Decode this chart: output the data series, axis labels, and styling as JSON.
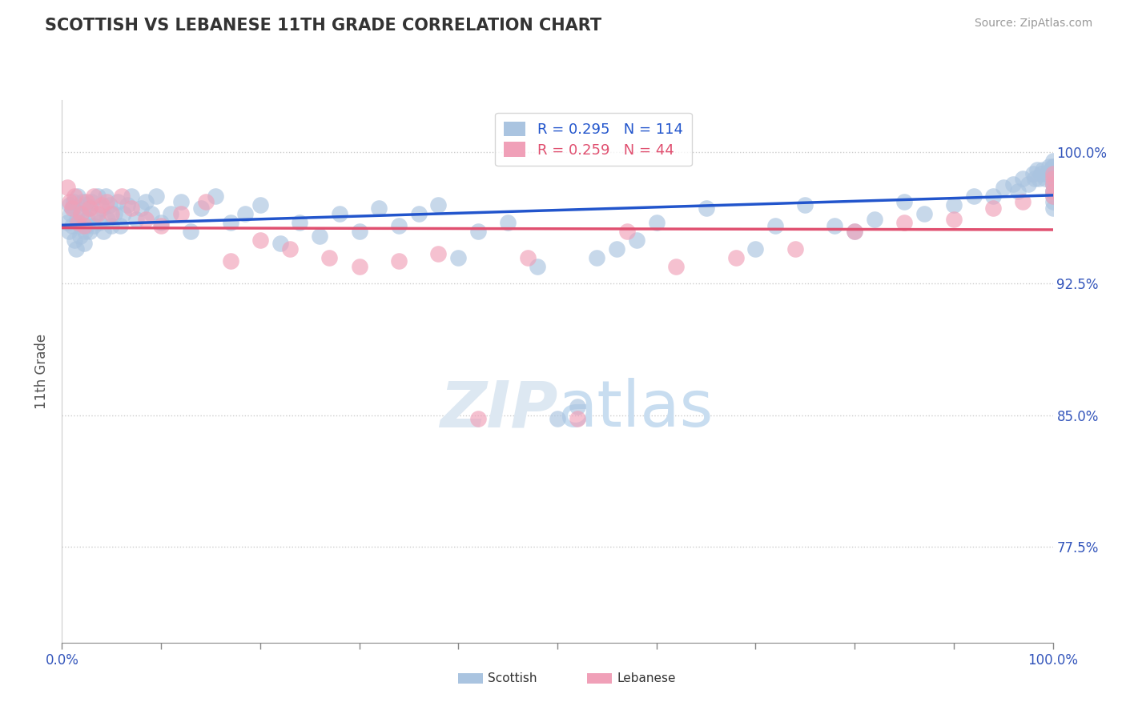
{
  "title": "SCOTTISH VS LEBANESE 11TH GRADE CORRELATION CHART",
  "source": "Source: ZipAtlas.com",
  "ylabel": "11th Grade",
  "ytick_labels": [
    "77.5%",
    "85.0%",
    "92.5%",
    "100.0%"
  ],
  "ytick_values": [
    0.775,
    0.85,
    0.925,
    1.0
  ],
  "xlim": [
    0.0,
    1.0
  ],
  "ylim": [
    0.72,
    1.03
  ],
  "scottish_color": "#aac4e0",
  "lebanese_color": "#f0a0b8",
  "scottish_line_color": "#2255cc",
  "lebanese_line_color": "#e05070",
  "scottish_R": 0.295,
  "scottish_N": 114,
  "lebanese_R": 0.259,
  "lebanese_N": 44,
  "scottish_x": [
    0.005,
    0.007,
    0.008,
    0.009,
    0.01,
    0.011,
    0.012,
    0.013,
    0.014,
    0.015,
    0.016,
    0.017,
    0.018,
    0.019,
    0.02,
    0.021,
    0.022,
    0.023,
    0.024,
    0.025,
    0.026,
    0.027,
    0.028,
    0.03,
    0.032,
    0.034,
    0.036,
    0.038,
    0.04,
    0.042,
    0.044,
    0.046,
    0.048,
    0.05,
    0.053,
    0.056,
    0.059,
    0.062,
    0.066,
    0.07,
    0.075,
    0.08,
    0.085,
    0.09,
    0.095,
    0.1,
    0.11,
    0.12,
    0.13,
    0.14,
    0.155,
    0.17,
    0.185,
    0.2,
    0.22,
    0.24,
    0.26,
    0.28,
    0.3,
    0.32,
    0.34,
    0.36,
    0.38,
    0.4,
    0.42,
    0.45,
    0.48,
    0.5,
    0.52,
    0.54,
    0.56,
    0.58,
    0.6,
    0.65,
    0.7,
    0.72,
    0.75,
    0.78,
    0.8,
    0.82,
    0.85,
    0.87,
    0.9,
    0.92,
    0.94,
    0.95,
    0.96,
    0.965,
    0.97,
    0.975,
    0.98,
    0.982,
    0.984,
    0.986,
    0.988,
    0.99,
    0.992,
    0.994,
    0.996,
    0.998,
    1.0,
    1.0,
    1.0,
    1.0,
    1.0,
    1.0,
    1.0,
    1.0,
    1.0,
    1.0,
    1.0,
    1.0,
    1.0,
    1.0
  ],
  "scottish_y": [
    0.96,
    0.955,
    0.97,
    0.965,
    0.958,
    0.968,
    0.972,
    0.95,
    0.945,
    0.962,
    0.975,
    0.96,
    0.952,
    0.958,
    0.965,
    0.972,
    0.948,
    0.955,
    0.97,
    0.958,
    0.962,
    0.968,
    0.955,
    0.972,
    0.958,
    0.965,
    0.975,
    0.96,
    0.968,
    0.955,
    0.975,
    0.962,
    0.97,
    0.958,
    0.965,
    0.972,
    0.958,
    0.965,
    0.97,
    0.975,
    0.962,
    0.968,
    0.972,
    0.965,
    0.975,
    0.96,
    0.965,
    0.972,
    0.955,
    0.968,
    0.975,
    0.96,
    0.965,
    0.97,
    0.948,
    0.96,
    0.952,
    0.965,
    0.955,
    0.968,
    0.958,
    0.965,
    0.97,
    0.94,
    0.955,
    0.96,
    0.935,
    0.848,
    0.855,
    0.94,
    0.945,
    0.95,
    0.96,
    0.968,
    0.945,
    0.958,
    0.97,
    0.958,
    0.955,
    0.962,
    0.972,
    0.965,
    0.97,
    0.975,
    0.975,
    0.98,
    0.982,
    0.978,
    0.985,
    0.982,
    0.988,
    0.985,
    0.99,
    0.985,
    0.988,
    0.99,
    0.985,
    0.988,
    0.992,
    0.99,
    0.972,
    0.978,
    0.982,
    0.985,
    0.988,
    0.992,
    0.995,
    0.988,
    0.982,
    0.975,
    0.985,
    0.992,
    0.968,
    0.978
  ],
  "lebanese_x": [
    0.005,
    0.008,
    0.01,
    0.013,
    0.016,
    0.019,
    0.022,
    0.025,
    0.028,
    0.032,
    0.036,
    0.04,
    0.045,
    0.05,
    0.06,
    0.07,
    0.085,
    0.1,
    0.12,
    0.145,
    0.17,
    0.2,
    0.23,
    0.27,
    0.3,
    0.34,
    0.38,
    0.42,
    0.47,
    0.52,
    0.57,
    0.62,
    0.68,
    0.74,
    0.8,
    0.85,
    0.9,
    0.94,
    0.97,
    1.0,
    1.0,
    1.0,
    1.0,
    1.0
  ],
  "lebanese_y": [
    0.98,
    0.972,
    0.968,
    0.975,
    0.96,
    0.965,
    0.958,
    0.972,
    0.968,
    0.975,
    0.965,
    0.97,
    0.972,
    0.965,
    0.975,
    0.968,
    0.962,
    0.958,
    0.965,
    0.972,
    0.938,
    0.95,
    0.945,
    0.94,
    0.935,
    0.938,
    0.942,
    0.848,
    0.94,
    0.848,
    0.955,
    0.935,
    0.94,
    0.945,
    0.955,
    0.96,
    0.962,
    0.968,
    0.972,
    0.978,
    0.982,
    0.988,
    0.975,
    0.985
  ]
}
